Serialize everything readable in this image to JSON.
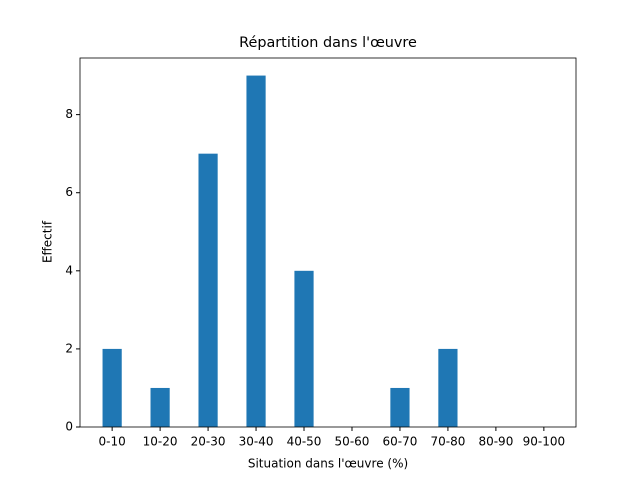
{
  "chart_data": {
    "type": "bar",
    "title": "Répartition dans l'œuvre",
    "xlabel": "Situation dans l'œuvre (%)",
    "ylabel": "Effectif",
    "categories": [
      "0-10",
      "10-20",
      "20-30",
      "30-40",
      "40-50",
      "50-60",
      "60-70",
      "70-80",
      "80-90",
      "90-100"
    ],
    "values": [
      2,
      1,
      7,
      9,
      4,
      0,
      1,
      2,
      0,
      0
    ],
    "color": "#1f77b4",
    "ylim": [
      0,
      9.45
    ],
    "yticks": [
      0,
      2,
      4,
      6,
      8
    ],
    "grid": false
  }
}
